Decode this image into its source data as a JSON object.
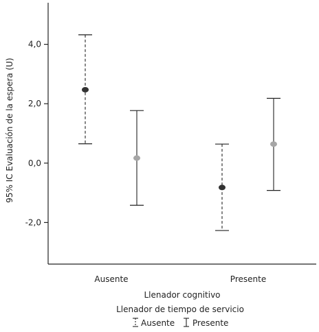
{
  "chart_data": {
    "type": "errorbar",
    "ylabel": "95% IC Evaluación de la espera (U)",
    "xlabel": "Llenador cognitivo",
    "legend_title": "Llenador de tiempo de servicio",
    "categories": [
      "Ausente",
      "Presente"
    ],
    "y_ticks": [
      4.0,
      2.0,
      0.0,
      -2.0
    ],
    "y_tick_labels": [
      "4,0",
      "2,0",
      "0,0",
      "-2,0"
    ],
    "ylim": [
      -3.4,
      5.4
    ],
    "series": [
      {
        "name": "Ausente",
        "line_style": "dashed",
        "point_color": "#333333",
        "points": [
          {
            "category": "Ausente",
            "mean": 2.47,
            "lower": 0.65,
            "upper": 4.32
          },
          {
            "category": "Presente",
            "mean": -0.82,
            "lower": -2.27,
            "upper": 0.64
          }
        ]
      },
      {
        "name": "Presente",
        "line_style": "solid",
        "point_color": "#a6a6a6",
        "points": [
          {
            "category": "Ausente",
            "mean": 0.17,
            "lower": -1.42,
            "upper": 1.77
          },
          {
            "category": "Presente",
            "mean": 0.64,
            "lower": -0.92,
            "upper": 2.18
          }
        ]
      }
    ],
    "legend_placement": "bottom-center",
    "grid": false
  }
}
